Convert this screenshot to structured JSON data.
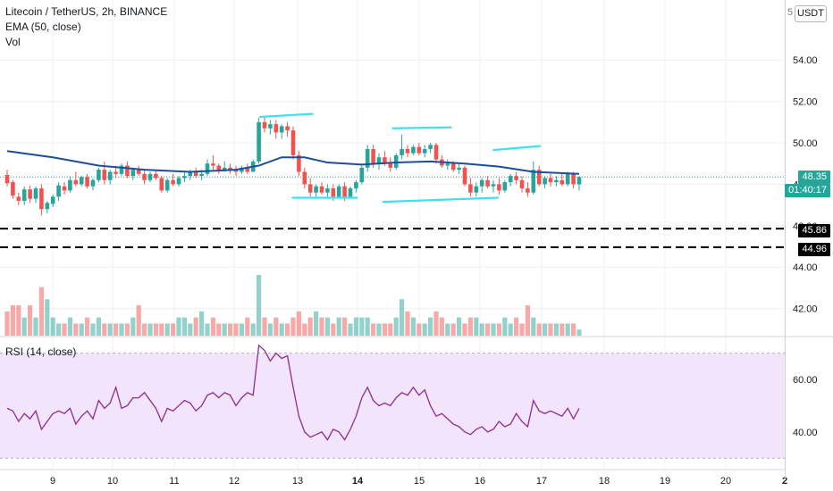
{
  "header": {
    "symbol_line": "Litecoin / TetherUS, 2h, BINANCE",
    "indicator_line": "EMA (50, close)",
    "volume_line": "Vol",
    "rsi_line": "RSI (14, close)"
  },
  "currency_button": "USDT",
  "currency_dot": "5",
  "price_tags": {
    "last_price": "48.35",
    "countdown": "01:40:17",
    "level_upper": "45.86",
    "level_lower": "44.96"
  },
  "colors": {
    "up": "#26a69a",
    "down": "#ef5350",
    "ema": "#1e4d9b",
    "rsi": "#8e2c8e",
    "rsi_band": "#f2e4fb",
    "annotation": "#40e0ee",
    "last_price_tag": "#26a69a"
  },
  "chart_data": [
    {
      "type": "candlestick",
      "title": "Litecoin / TetherUS, 2h, BINANCE",
      "x_ticks": [
        "9",
        "10",
        "11",
        "12",
        "13",
        "14",
        "15",
        "16",
        "17",
        "18",
        "19",
        "20",
        "2"
      ],
      "y_ticks": [
        42.0,
        44.0,
        46.0,
        48.0,
        50.0,
        52.0,
        54.0
      ],
      "ylim": [
        40.9,
        56.0
      ],
      "horizontal_levels": [
        45.86,
        44.96
      ],
      "last_price": 48.35,
      "candles": [
        [
          48.45,
          48.7,
          47.9,
          48.05
        ],
        [
          48.1,
          48.2,
          47.3,
          47.45
        ],
        [
          47.4,
          47.6,
          47.0,
          47.2
        ],
        [
          47.2,
          47.9,
          47.0,
          47.75
        ],
        [
          47.75,
          47.95,
          47.1,
          47.3
        ],
        [
          47.3,
          47.9,
          47.1,
          47.8
        ],
        [
          47.8,
          48.0,
          46.5,
          46.8
        ],
        [
          46.8,
          47.2,
          46.6,
          47.1
        ],
        [
          47.05,
          47.5,
          46.9,
          47.4
        ],
        [
          47.4,
          48.1,
          47.2,
          47.95
        ],
        [
          47.9,
          48.1,
          47.5,
          47.7
        ],
        [
          47.7,
          48.4,
          47.6,
          48.2
        ],
        [
          48.2,
          48.6,
          47.9,
          48.0
        ],
        [
          48.0,
          48.4,
          47.9,
          48.35
        ],
        [
          48.35,
          48.5,
          47.8,
          47.9
        ],
        [
          47.9,
          48.3,
          47.7,
          48.2
        ],
        [
          48.2,
          48.8,
          48.1,
          48.7
        ],
        [
          48.7,
          49.1,
          48.0,
          48.2
        ],
        [
          48.2,
          48.7,
          48.0,
          48.6
        ],
        [
          48.6,
          48.9,
          48.3,
          48.5
        ],
        [
          48.5,
          49.0,
          48.4,
          48.9
        ],
        [
          48.9,
          49.1,
          48.3,
          48.4
        ],
        [
          48.4,
          48.8,
          48.2,
          48.7
        ],
        [
          48.7,
          48.9,
          48.4,
          48.5
        ],
        [
          48.5,
          48.7,
          48.0,
          48.2
        ],
        [
          48.2,
          48.6,
          48.1,
          48.5
        ],
        [
          48.5,
          48.7,
          48.2,
          48.3
        ],
        [
          48.3,
          48.4,
          47.6,
          47.7
        ],
        [
          47.7,
          48.3,
          47.6,
          48.2
        ],
        [
          48.2,
          48.5,
          47.9,
          48.0
        ],
        [
          48.0,
          48.4,
          47.9,
          48.3
        ],
        [
          48.3,
          48.6,
          48.1,
          48.4
        ],
        [
          48.4,
          48.7,
          48.2,
          48.6
        ],
        [
          48.6,
          48.8,
          48.3,
          48.4
        ],
        [
          48.4,
          48.7,
          48.2,
          48.5
        ],
        [
          48.5,
          49.2,
          48.4,
          49.0
        ],
        [
          49.0,
          49.4,
          48.7,
          48.9
        ],
        [
          48.9,
          49.0,
          48.5,
          48.7
        ],
        [
          48.7,
          49.1,
          48.6,
          48.8
        ],
        [
          48.8,
          49.0,
          48.5,
          48.7
        ],
        [
          48.7,
          48.9,
          48.4,
          48.6
        ],
        [
          48.6,
          48.9,
          48.5,
          48.8
        ],
        [
          48.8,
          49.0,
          48.5,
          48.6
        ],
        [
          48.6,
          49.2,
          48.6,
          49.1
        ],
        [
          49.1,
          51.2,
          49.0,
          51.0
        ],
        [
          51.0,
          51.3,
          50.5,
          50.7
        ],
        [
          50.7,
          51.1,
          50.4,
          50.9
        ],
        [
          50.9,
          51.1,
          50.2,
          50.5
        ],
        [
          50.5,
          50.9,
          50.2,
          50.8
        ],
        [
          50.8,
          51.0,
          50.3,
          50.6
        ],
        [
          50.6,
          50.8,
          49.2,
          49.4
        ],
        [
          49.4,
          49.6,
          48.4,
          48.6
        ],
        [
          48.6,
          48.8,
          47.8,
          48.0
        ],
        [
          48.0,
          48.3,
          47.4,
          47.6
        ],
        [
          47.6,
          48.0,
          47.4,
          47.9
        ],
        [
          47.9,
          48.1,
          47.5,
          47.6
        ],
        [
          47.6,
          48.0,
          47.4,
          47.8
        ],
        [
          47.8,
          48.0,
          47.2,
          47.4
        ],
        [
          47.4,
          48.0,
          47.3,
          47.9
        ],
        [
          47.9,
          48.1,
          47.2,
          47.4
        ],
        [
          47.4,
          47.9,
          47.3,
          47.8
        ],
        [
          47.8,
          48.2,
          47.6,
          48.1
        ],
        [
          48.1,
          48.9,
          48.0,
          48.8
        ],
        [
          48.8,
          49.9,
          48.6,
          49.7
        ],
        [
          49.7,
          49.9,
          48.8,
          49.0
        ],
        [
          49.0,
          49.5,
          48.7,
          49.3
        ],
        [
          49.3,
          49.6,
          48.9,
          49.0
        ],
        [
          49.0,
          49.3,
          48.6,
          48.8
        ],
        [
          48.8,
          49.5,
          48.7,
          49.4
        ],
        [
          49.4,
          50.4,
          49.2,
          49.7
        ],
        [
          49.7,
          49.9,
          49.3,
          49.5
        ],
        [
          49.5,
          49.9,
          49.4,
          49.8
        ],
        [
          49.8,
          50.0,
          49.4,
          49.5
        ],
        [
          49.5,
          49.9,
          49.3,
          49.7
        ],
        [
          49.7,
          50.0,
          49.5,
          49.9
        ],
        [
          49.9,
          50.0,
          49.0,
          49.2
        ],
        [
          49.2,
          49.4,
          48.8,
          48.9
        ],
        [
          48.9,
          49.2,
          48.7,
          49.0
        ],
        [
          49.0,
          49.1,
          48.6,
          48.7
        ],
        [
          48.7,
          49.0,
          48.5,
          48.8
        ],
        [
          48.8,
          48.9,
          47.9,
          48.0
        ],
        [
          48.0,
          48.3,
          47.4,
          47.6
        ],
        [
          47.6,
          48.1,
          47.4,
          47.9
        ],
        [
          47.9,
          48.3,
          47.6,
          48.2
        ],
        [
          48.2,
          48.4,
          47.8,
          47.9
        ],
        [
          47.9,
          48.2,
          47.6,
          48.0
        ],
        [
          48.0,
          48.3,
          47.5,
          47.7
        ],
        [
          47.7,
          48.2,
          47.6,
          48.1
        ],
        [
          48.1,
          48.5,
          47.9,
          48.4
        ],
        [
          48.4,
          48.6,
          48.0,
          48.2
        ],
        [
          48.2,
          48.4,
          47.6,
          47.8
        ],
        [
          47.8,
          48.1,
          47.4,
          47.6
        ],
        [
          47.6,
          49.1,
          47.5,
          48.7
        ],
        [
          48.7,
          48.9,
          47.9,
          48.0
        ],
        [
          48.0,
          48.4,
          47.8,
          48.3
        ],
        [
          48.3,
          48.5,
          47.9,
          48.1
        ],
        [
          48.1,
          48.4,
          47.9,
          48.2
        ],
        [
          48.2,
          48.5,
          47.9,
          48.0
        ],
        [
          48.0,
          48.6,
          47.9,
          48.5
        ],
        [
          48.5,
          48.6,
          47.8,
          48.0
        ],
        [
          48.0,
          48.4,
          47.7,
          48.35
        ]
      ],
      "ema50": [
        [
          0,
          49.6
        ],
        [
          8,
          49.3
        ],
        [
          16,
          48.9
        ],
        [
          24,
          48.7
        ],
        [
          32,
          48.6
        ],
        [
          40,
          48.7
        ],
        [
          44,
          48.9
        ],
        [
          48,
          49.3
        ],
        [
          52,
          49.3
        ],
        [
          56,
          49.05
        ],
        [
          62,
          48.95
        ],
        [
          68,
          49.05
        ],
        [
          74,
          49.1
        ],
        [
          80,
          49.0
        ],
        [
          86,
          48.85
        ],
        [
          92,
          48.6
        ],
        [
          100,
          48.5
        ]
      ],
      "annotations": [
        {
          "points": [
            [
              44.1,
              51.25
            ],
            [
              53.5,
              51.4
            ]
          ]
        },
        {
          "points": [
            [
              49.8,
              47.35
            ],
            [
              61.3,
              47.35
            ]
          ]
        },
        {
          "points": [
            [
              67.3,
              50.7
            ],
            [
              77.7,
              50.75
            ]
          ]
        },
        {
          "points": [
            [
              65.6,
              47.15
            ],
            [
              85.9,
              47.35
            ]
          ]
        },
        {
          "points": [
            [
              84.9,
              49.65
            ],
            [
              93.3,
              49.85
            ]
          ]
        }
      ]
    },
    {
      "type": "bar",
      "title": "Vol",
      "values": [
        4,
        5,
        5,
        3,
        5,
        3,
        8,
        6,
        3,
        2,
        2,
        3,
        2,
        2,
        3,
        2,
        3,
        2,
        2,
        2,
        2,
        2,
        3,
        5,
        2,
        2,
        2,
        2,
        2,
        2,
        3,
        3,
        2,
        3,
        4,
        2,
        3,
        2,
        2,
        2,
        2,
        2,
        3,
        2,
        10,
        3,
        2,
        3,
        2,
        2,
        3,
        4,
        2,
        3,
        4,
        3,
        3,
        2,
        3,
        3,
        2,
        3,
        3,
        3,
        2,
        2,
        2,
        2,
        3,
        6,
        4,
        3,
        2,
        2,
        3,
        4,
        3,
        2,
        2,
        3,
        2,
        3,
        3,
        2,
        2,
        2,
        2,
        3,
        2,
        3,
        2,
        5,
        3,
        2,
        2,
        2,
        2,
        2,
        2,
        2,
        1
      ]
    },
    {
      "type": "line",
      "title": "RSI (14, close)",
      "y_ticks": [
        40.0,
        60.0
      ],
      "ylim": [
        26,
        76
      ],
      "band": [
        30,
        70
      ],
      "values": [
        49,
        48,
        44,
        47,
        45,
        48,
        41,
        44,
        47,
        48,
        47,
        49,
        43,
        46,
        48,
        45,
        52,
        49,
        51,
        57,
        49,
        50,
        53,
        53,
        55,
        52,
        49,
        44,
        49,
        48,
        50,
        52,
        51,
        48,
        50,
        54,
        55,
        53,
        55,
        54,
        50,
        53,
        55,
        54,
        73,
        71,
        67,
        70,
        68,
        69,
        57,
        46,
        40,
        38,
        39,
        40,
        37,
        41,
        40,
        37,
        41,
        46,
        53,
        57,
        52,
        50,
        51,
        50,
        53,
        55,
        54,
        57,
        54,
        56,
        50,
        46,
        47,
        45,
        43,
        42,
        40,
        39,
        41,
        42,
        40,
        41,
        44,
        42,
        43,
        47,
        44,
        42,
        52,
        48,
        47,
        48,
        47,
        46,
        49,
        45,
        49
      ]
    }
  ],
  "time_labels_bold": [
    "14",
    "2"
  ]
}
